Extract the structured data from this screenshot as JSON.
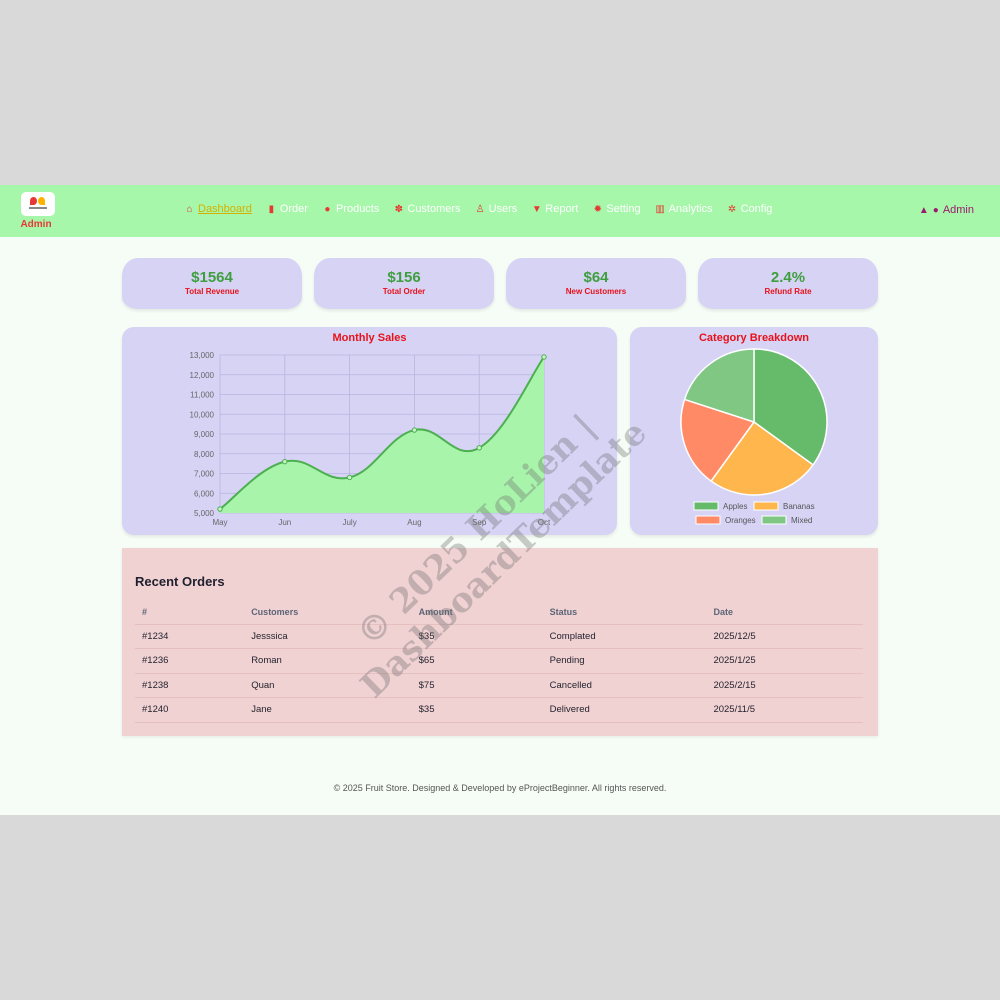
{
  "brand": {
    "name": "Admin"
  },
  "nav": {
    "items": [
      {
        "label": "Dashboard",
        "icon": "home-icon",
        "glyph": "⌂",
        "active": true
      },
      {
        "label": "Order",
        "icon": "book-icon",
        "glyph": "▮"
      },
      {
        "label": "Products",
        "icon": "product-icon",
        "glyph": "●"
      },
      {
        "label": "Customers",
        "icon": "paw-icon",
        "glyph": "✽"
      },
      {
        "label": "Users",
        "icon": "user-icon",
        "glyph": "♙"
      },
      {
        "label": "Report",
        "icon": "filter-icon",
        "glyph": "▼"
      },
      {
        "label": "Setting",
        "icon": "gear-icon",
        "glyph": "✹"
      },
      {
        "label": "Analytics",
        "icon": "bar-chart-icon",
        "glyph": "▥"
      },
      {
        "label": "Config",
        "icon": "gears-icon",
        "glyph": "✲"
      }
    ],
    "user_label": "Admin"
  },
  "stats": [
    {
      "value": "$1564",
      "label": "Total Revenue"
    },
    {
      "value": "$156",
      "label": "Total Order"
    },
    {
      "value": "$64",
      "label": "New Customers"
    },
    {
      "value": "2.4%",
      "label": "Refund Rate"
    }
  ],
  "colors": {
    "accent_red": "#e8121a",
    "value_green": "#3f9f3f",
    "card_bg": "#d6d3f5",
    "nav_bg": "#a6f7aa",
    "line": "#4caf50",
    "area": "#a6f5a6"
  },
  "chart_data": [
    {
      "type": "line",
      "title": "Monthly Sales",
      "categories": [
        "May",
        "Jun",
        "July",
        "Aug",
        "Sep",
        "Oct"
      ],
      "values": [
        5200,
        7600,
        6800,
        9200,
        8300,
        12900
      ],
      "ylim": [
        5000,
        13000
      ],
      "yticks": [
        "5,000",
        "6,000",
        "7,000",
        "8,000",
        "9,000",
        "10,000",
        "11,000",
        "12,000",
        "13,000"
      ],
      "grid": true,
      "fill": true
    },
    {
      "type": "pie",
      "title": "Category Breakdown",
      "labels": [
        "Apples",
        "Bananas",
        "Oranges",
        "Mixed"
      ],
      "values": [
        35,
        25,
        20,
        20
      ],
      "colors": [
        "#66bb6a",
        "#ffb74d",
        "#ff8a65",
        "#81c784"
      ],
      "legend": "bottom"
    }
  ],
  "orders": {
    "title": "Recent Orders",
    "columns": [
      "#",
      "Customers",
      "Amount",
      "Status",
      "Date"
    ],
    "rows": [
      [
        "#1234",
        "Jesssica",
        "$35",
        "Complated",
        "2025/12/5"
      ],
      [
        "#1236",
        "Roman",
        "$65",
        "Pending",
        "2025/1/25"
      ],
      [
        "#1238",
        "Quan",
        "$75",
        "Cancelled",
        "2025/2/15"
      ],
      [
        "#1240",
        "Jane",
        "$35",
        "Delivered",
        "2025/11/5"
      ]
    ]
  },
  "footer": "© 2025 Fruit Store. Designed & Developed by eProjectBeginner. All rights reserved.",
  "watermark": [
    "© 2025 HoLien |",
    "DashboardTemplate"
  ]
}
